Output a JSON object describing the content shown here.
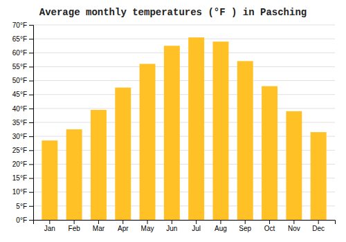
{
  "chart_data": {
    "type": "bar",
    "title": "Average monthly temperatures (°F ) in Pasching",
    "categories": [
      "Jan",
      "Feb",
      "Mar",
      "Apr",
      "May",
      "Jun",
      "Jul",
      "Aug",
      "Sep",
      "Oct",
      "Nov",
      "Dec"
    ],
    "values": [
      28.5,
      32.5,
      39.5,
      47.5,
      56.0,
      62.5,
      65.5,
      64.0,
      57.0,
      48.0,
      39.0,
      31.5
    ],
    "color": "#FFC125",
    "ylim": [
      0,
      70
    ],
    "yticks": [
      {
        "value": 0,
        "label": "0°F"
      },
      {
        "value": 5,
        "label": "5°F"
      },
      {
        "value": 10,
        "label": "10°F"
      },
      {
        "value": 15,
        "label": "15°F"
      },
      {
        "value": 20,
        "label": "20°F"
      },
      {
        "value": 25,
        "label": "25°F"
      },
      {
        "value": 30,
        "label": "30°F"
      },
      {
        "value": 35,
        "label": "35°F"
      },
      {
        "value": 40,
        "label": "40°F"
      },
      {
        "value": 45,
        "label": "45°F"
      },
      {
        "value": 50,
        "label": "50°F"
      },
      {
        "value": 55,
        "label": "55°F"
      },
      {
        "value": 60,
        "label": "60°F"
      },
      {
        "value": 65,
        "label": "65°F"
      },
      {
        "value": 70,
        "label": "70°F"
      }
    ],
    "grid": true
  }
}
